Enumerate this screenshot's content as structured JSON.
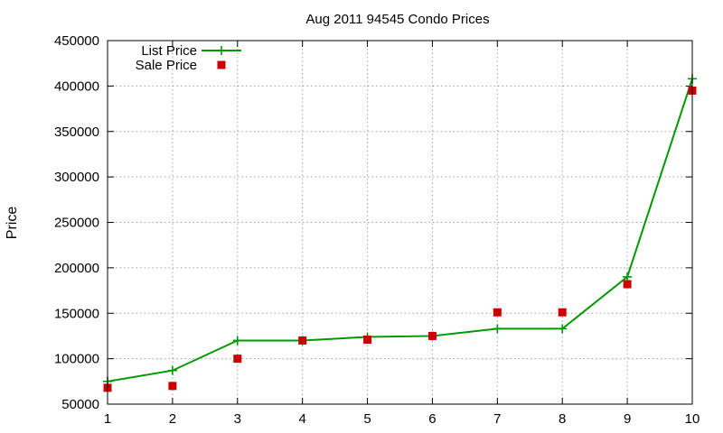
{
  "chart_data": {
    "type": "line",
    "title": "Aug 2011 94545 Condo Prices",
    "xlabel": "",
    "ylabel": "Price",
    "xlim": [
      1,
      10
    ],
    "ylim": [
      50000,
      450000
    ],
    "x_ticks": [
      "1",
      "2",
      "3",
      "4",
      "5",
      "6",
      "7",
      "8",
      "9",
      "10"
    ],
    "y_ticks": [
      "50000",
      "100000",
      "150000",
      "200000",
      "250000",
      "300000",
      "350000",
      "400000",
      "450000"
    ],
    "grid": true,
    "legend_position": "top-left",
    "x": [
      1,
      2,
      3,
      4,
      5,
      6,
      7,
      8,
      9,
      10
    ],
    "series": [
      {
        "name": "List Price",
        "style": "line-with-plus-markers",
        "color": "#009900",
        "values": [
          75000,
          87000,
          120000,
          120000,
          124000,
          125000,
          133000,
          133000,
          190000,
          408000
        ]
      },
      {
        "name": "Sale Price",
        "style": "square-markers",
        "color": "#cc0000",
        "values": [
          68000,
          70000,
          100000,
          120000,
          121000,
          125000,
          151000,
          151000,
          182000,
          395000
        ]
      }
    ]
  }
}
